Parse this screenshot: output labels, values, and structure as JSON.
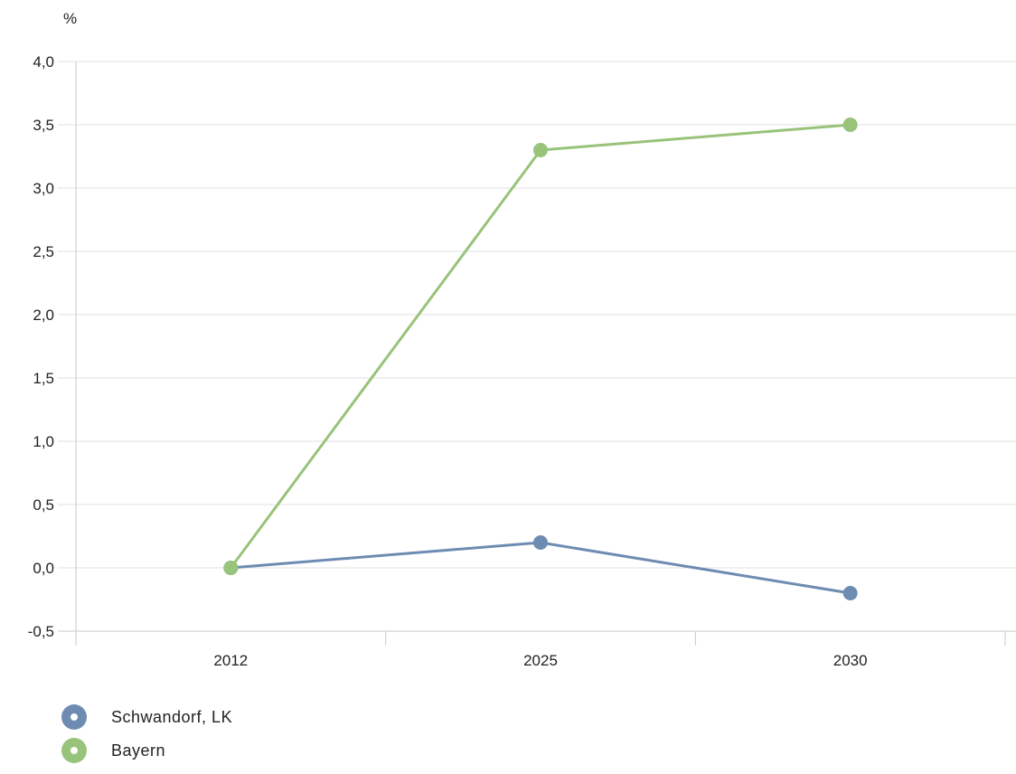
{
  "chart_data": {
    "type": "line",
    "unit_label": "%",
    "categories": [
      "2012",
      "2025",
      "2030"
    ],
    "ylim": [
      -0.5,
      4.0
    ],
    "yticks": [
      "-0,5",
      "0,0",
      "0,5",
      "1,0",
      "1,5",
      "2,0",
      "2,5",
      "3,0",
      "3,5",
      "4,0"
    ],
    "ytick_values": [
      -0.5,
      0.0,
      0.5,
      1.0,
      1.5,
      2.0,
      2.5,
      3.0,
      3.5,
      4.0
    ],
    "grid": true,
    "legend_position": "bottom-left",
    "series": [
      {
        "name": "Schwandorf, LK",
        "color": "#6e8cb2",
        "values": [
          0.0,
          0.2,
          -0.2
        ]
      },
      {
        "name": "Bayern",
        "color": "#98c37a",
        "values": [
          0.0,
          3.3,
          3.5
        ]
      }
    ]
  }
}
